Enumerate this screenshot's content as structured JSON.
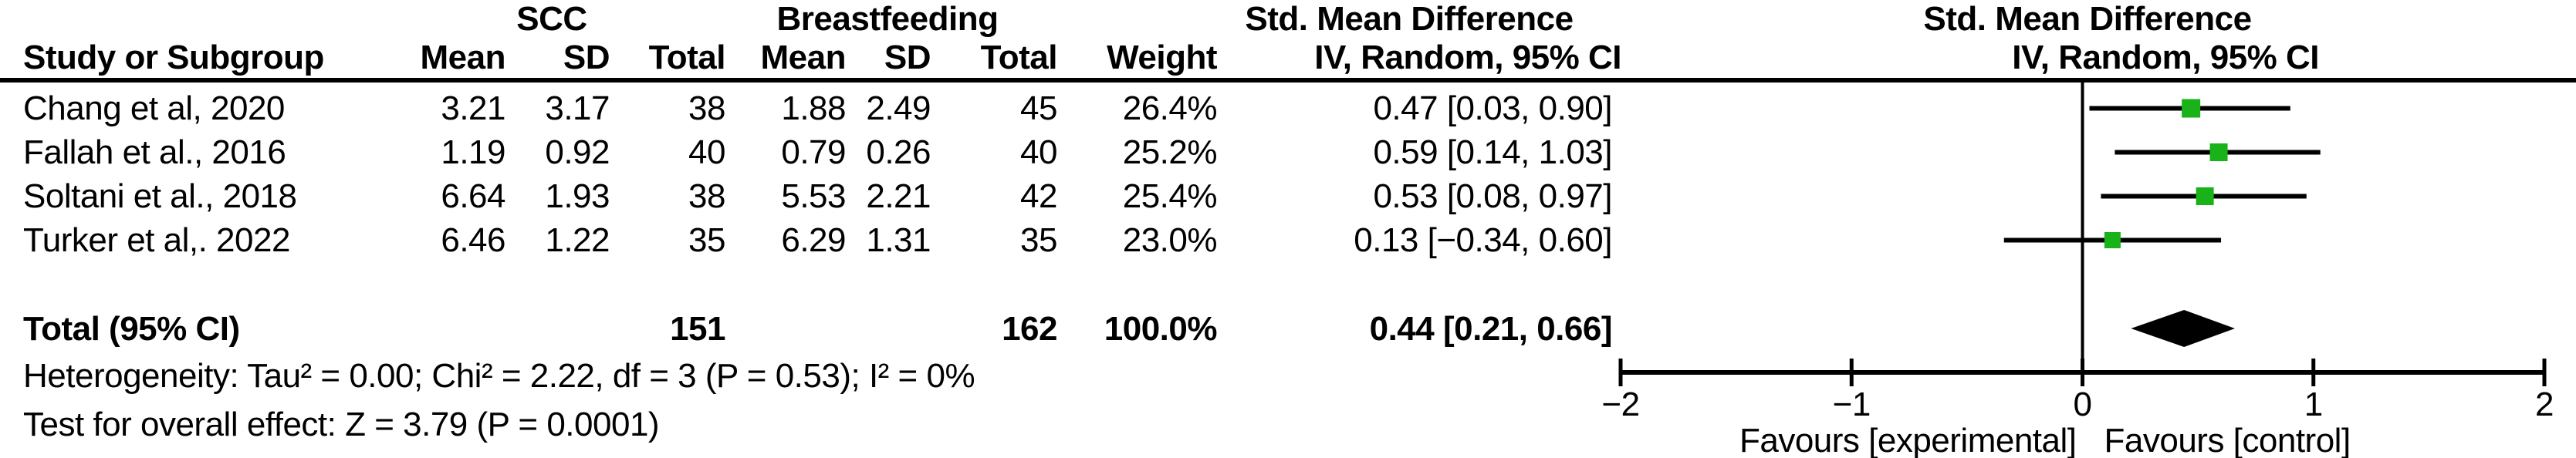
{
  "table": {
    "group_headers": {
      "scc": "SCC",
      "breastfeeding": "Breastfeeding",
      "smd_left": "Std. Mean Difference",
      "smd_right": "Std. Mean Difference"
    },
    "columns": {
      "study": "Study or Subgroup",
      "mean1": "Mean",
      "sd1": "SD",
      "total1": "Total",
      "mean2": "Mean",
      "sd2": "SD",
      "total2": "Total",
      "weight": "Weight",
      "ci": "IV, Random, 95% CI",
      "ci_right": "IV, Random, 95% CI"
    },
    "rows": [
      {
        "study": "Chang et al, 2020",
        "mean1": "3.21",
        "sd1": "3.17",
        "total1": "38",
        "mean2": "1.88",
        "sd2": "2.49",
        "total2": "45",
        "weight": "26.4%",
        "ci": "0.47 [0.03, 0.90]"
      },
      {
        "study": "Fallah et al., 2016",
        "mean1": "1.19",
        "sd1": "0.92",
        "total1": "40",
        "mean2": "0.79",
        "sd2": "0.26",
        "total2": "40",
        "weight": "25.2%",
        "ci": "0.59 [0.14, 1.03]"
      },
      {
        "study": "Soltani et al., 2018",
        "mean1": "6.64",
        "sd1": "1.93",
        "total1": "38",
        "mean2": "5.53",
        "sd2": "2.21",
        "total2": "42",
        "weight": "25.4%",
        "ci": "0.53 [0.08, 0.97]"
      },
      {
        "study": "Turker et al,. 2022",
        "mean1": "6.46",
        "sd1": "1.22",
        "total1": "35",
        "mean2": "6.29",
        "sd2": "1.31",
        "total2": "35",
        "weight": "23.0%",
        "ci": "0.13 [−0.34, 0.60]"
      }
    ],
    "total_row": {
      "label": "Total (95% CI)",
      "total1": "151",
      "total2": "162",
      "weight": "100.0%",
      "ci": "0.44 [0.21, 0.66]"
    },
    "footnotes": {
      "heterogeneity": "Heterogeneity: Tau² = 0.00; Chi² = 2.22, df = 3 (P = 0.53); I² = 0%",
      "overall_effect": "Test for overall effect: Z = 3.79 (P = 0.0001)"
    }
  },
  "chart_data": {
    "type": "forest",
    "title": "Std. Mean Difference",
    "subtitle": "IV, Random, 95% CI",
    "effect_model": "IV, Random, 95% CI",
    "xlim": [
      -2,
      2
    ],
    "ticks": [
      -2,
      -1,
      0,
      1,
      2
    ],
    "grid": false,
    "marker_color": "#19B219",
    "line_color": "#000000",
    "studies": [
      {
        "name": "Chang et al, 2020",
        "smd": 0.47,
        "ci_low": 0.03,
        "ci_high": 0.9,
        "weight_pct": 26.4
      },
      {
        "name": "Fallah et al., 2016",
        "smd": 0.59,
        "ci_low": 0.14,
        "ci_high": 1.03,
        "weight_pct": 25.2
      },
      {
        "name": "Soltani et al., 2018",
        "smd": 0.53,
        "ci_low": 0.08,
        "ci_high": 0.97,
        "weight_pct": 25.4
      },
      {
        "name": "Turker et al,. 2022",
        "smd": 0.13,
        "ci_low": -0.34,
        "ci_high": 0.6,
        "weight_pct": 23.0
      }
    ],
    "total": {
      "smd": 0.44,
      "ci_low": 0.21,
      "ci_high": 0.66,
      "weight_pct": 100.0
    },
    "favours_left": "Favours [experimental]",
    "favours_right": "Favours [control]"
  }
}
